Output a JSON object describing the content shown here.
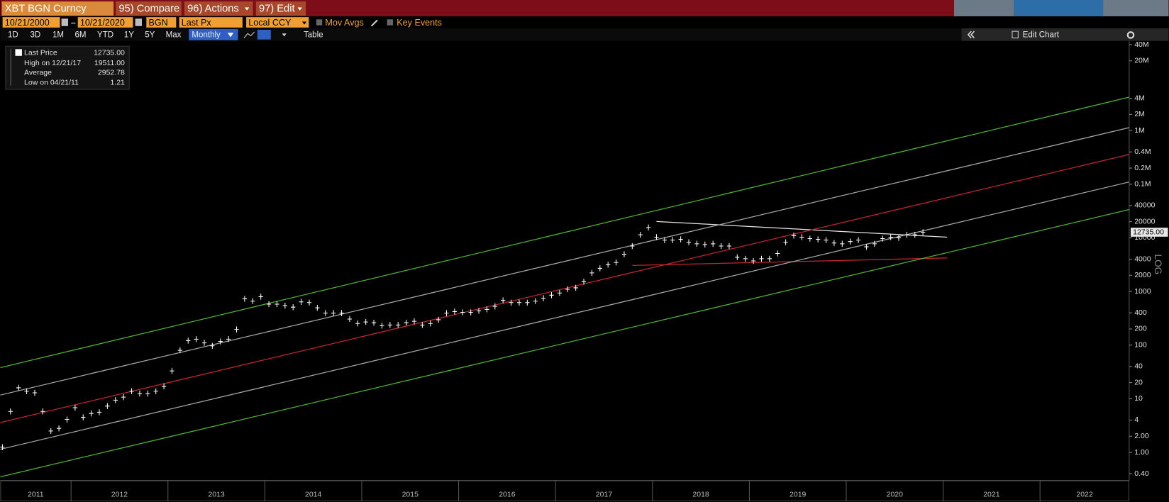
{
  "toolbar": {
    "security": "XBT BGN Curncy",
    "menu": [
      "95) Compare",
      "96) Actions",
      "97) Edit"
    ],
    "start_date": "10/21/2000",
    "end_date": "10/21/2020",
    "source": "BGN",
    "field": "Last Px",
    "currency": "Local CCY",
    "options": [
      "Mov Avgs",
      "Key Events"
    ],
    "periods": [
      "1D",
      "3D",
      "1M",
      "6M",
      "YTD",
      "1Y",
      "5Y",
      "Max"
    ],
    "frequency": "Monthly",
    "view": "Table",
    "edit": "Edit Chart"
  },
  "chart_data": {
    "type": "line",
    "log_scale": true,
    "grid": false,
    "ylabel": "LOG",
    "summary": [
      {
        "label": "High on 12/21/17",
        "value": "19511.00"
      },
      {
        "label": "Average",
        "value": "2952.78"
      },
      {
        "label": "Low on 04/21/11",
        "value": "1.21"
      }
    ],
    "xlim": [
      2011.27,
      2022.92
    ],
    "xticks": [
      2011,
      2012,
      2013,
      2014,
      2015,
      2016,
      2017,
      2018,
      2019,
      2020,
      2021,
      2022
    ],
    "ylim": [
      0.3,
      44000000
    ],
    "yticks": [
      {
        "value": 0.4,
        "label": "0.40"
      },
      {
        "value": 1,
        "label": "1.00"
      },
      {
        "value": 2,
        "label": "2.00"
      },
      4,
      10,
      20,
      40,
      100,
      200,
      400,
      1000,
      2000,
      4000,
      10000,
      20000,
      40000,
      {
        "value": 100000,
        "label": "0.1M"
      },
      {
        "value": 200000,
        "label": "0.2M"
      },
      {
        "value": 400000,
        "label": "0.4M"
      },
      {
        "value": 1000000,
        "label": "1M"
      },
      {
        "value": 2000000,
        "label": "2M"
      },
      {
        "value": 4000000,
        "label": "4M"
      },
      {
        "value": 20000000,
        "label": "20M"
      },
      {
        "value": 40000000,
        "label": "40M"
      }
    ],
    "series": [
      {
        "name": "Last Price",
        "style": "bar",
        "color": "#ffffff",
        "last_label": "12735.00",
        "x": [
          "2011-04",
          "2011-05",
          "2011-06",
          "2011-07",
          "2011-08",
          "2011-09",
          "2011-10",
          "2011-11",
          "2011-12",
          "2012-01",
          "2012-02",
          "2012-03",
          "2012-04",
          "2012-05",
          "2012-06",
          "2012-07",
          "2012-08",
          "2012-09",
          "2012-10",
          "2012-11",
          "2012-12",
          "2013-01",
          "2013-02",
          "2013-03",
          "2013-04",
          "2013-05",
          "2013-06",
          "2013-07",
          "2013-08",
          "2013-09",
          "2013-10",
          "2013-11",
          "2013-12",
          "2014-01",
          "2014-02",
          "2014-03",
          "2014-04",
          "2014-05",
          "2014-06",
          "2014-07",
          "2014-08",
          "2014-09",
          "2014-10",
          "2014-11",
          "2014-12",
          "2015-01",
          "2015-02",
          "2015-03",
          "2015-04",
          "2015-05",
          "2015-06",
          "2015-07",
          "2015-08",
          "2015-09",
          "2015-10",
          "2015-11",
          "2015-12",
          "2016-01",
          "2016-02",
          "2016-03",
          "2016-04",
          "2016-05",
          "2016-06",
          "2016-07",
          "2016-08",
          "2016-09",
          "2016-10",
          "2016-11",
          "2016-12",
          "2017-01",
          "2017-02",
          "2017-03",
          "2017-04",
          "2017-05",
          "2017-06",
          "2017-07",
          "2017-08",
          "2017-09",
          "2017-10",
          "2017-11",
          "2017-12",
          "2018-01",
          "2018-02",
          "2018-03",
          "2018-04",
          "2018-05",
          "2018-06",
          "2018-07",
          "2018-08",
          "2018-09",
          "2018-10",
          "2018-11",
          "2018-12",
          "2019-01",
          "2019-02",
          "2019-03",
          "2019-04",
          "2019-05",
          "2019-06",
          "2019-07",
          "2019-08",
          "2019-09",
          "2019-10",
          "2019-11",
          "2019-12",
          "2020-01",
          "2020-02",
          "2020-03",
          "2020-04",
          "2020-05",
          "2020-06",
          "2020-07",
          "2020-08",
          "2020-09",
          "2020-10"
        ],
        "values": [
          1.25,
          5.8,
          16,
          13.8,
          12.9,
          5.8,
          2.5,
          2.8,
          4.1,
          6.8,
          4.5,
          5.3,
          5.6,
          7.3,
          9.4,
          10.7,
          13.8,
          12.5,
          12.5,
          13.8,
          17,
          33,
          80,
          121,
          129,
          110,
          97,
          117,
          129,
          196,
          730,
          660,
          800,
          580,
          580,
          545,
          510,
          640,
          620,
          495,
          395,
          395,
          395,
          306,
          253,
          270,
          261,
          230,
          237,
          237,
          261,
          278,
          237,
          253,
          297,
          395,
          422,
          408,
          408,
          436,
          464,
          527,
          681,
          620,
          620,
          620,
          660,
          750,
          853,
          937,
          1100,
          1170,
          1520,
          2220,
          2700,
          3160,
          3480,
          4950,
          7030,
          11400,
          15600,
          10300,
          9080,
          9080,
          9380,
          8260,
          7740,
          7500,
          7740,
          7030,
          7030,
          4350,
          4080,
          3710,
          4080,
          4080,
          5110,
          8260,
          11000,
          10300,
          9680,
          9380,
          9080,
          8000,
          7740,
          8530,
          9080,
          6810,
          7740,
          9680,
          10300,
          10000,
          11400,
          11400,
          12735
        ]
      },
      {
        "color": "#4fb32e",
        "x": [
          2011.27,
          2022.92
        ],
        "values": [
          38,
          4200000
        ]
      },
      {
        "color": "#a8a8a8",
        "x": [
          2011.27,
          2022.92
        ],
        "values": [
          11.7,
          1137000
        ]
      },
      {
        "color": "#c3262f",
        "x": [
          2011.27,
          2022.92
        ],
        "values": [
          3.6,
          359000
        ]
      },
      {
        "color": "#a8a8a8",
        "x": [
          2011.27,
          2022.92
        ],
        "values": [
          1.14,
          110000
        ]
      },
      {
        "color": "#4fb32e",
        "x": [
          2011.27,
          2022.92
        ],
        "values": [
          0.35,
          33700
        ]
      },
      {
        "color": "#e6e6e6",
        "x": [
          "2018-01",
          "2021-01"
        ],
        "values": [
          20200,
          10300
        ]
      },
      {
        "color": "#c3262f",
        "x": [
          "2017-10",
          "2021-01"
        ],
        "values": [
          3060,
          4220
        ]
      }
    ]
  }
}
